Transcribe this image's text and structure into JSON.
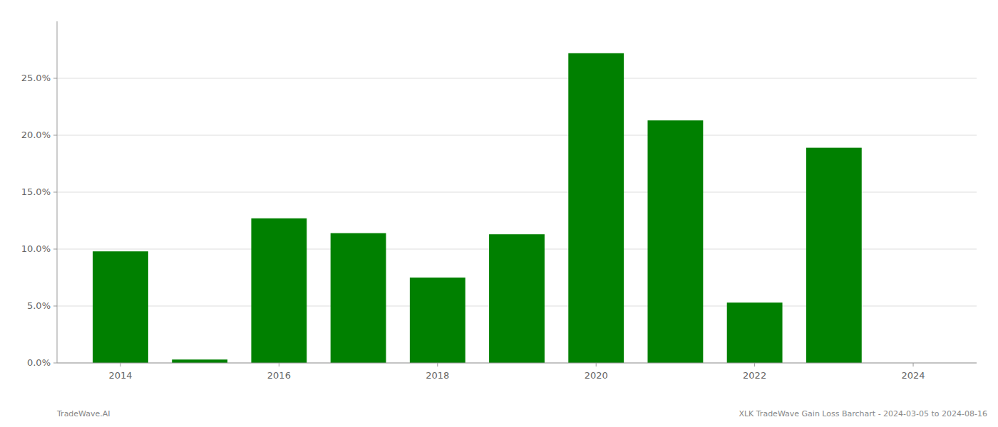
{
  "chart_data": {
    "type": "bar",
    "x": [
      2014,
      2015,
      2016,
      2017,
      2018,
      2019,
      2020,
      2021,
      2022,
      2023,
      2024
    ],
    "values": [
      0.098,
      0.003,
      0.127,
      0.114,
      0.075,
      0.113,
      0.272,
      0.213,
      0.053,
      0.189,
      0.0
    ],
    "color": "#008000",
    "xlim": [
      2013.2,
      2024.8
    ],
    "xticks": [
      2014,
      2016,
      2018,
      2020,
      2022,
      2024
    ],
    "ylim": [
      0,
      0.3
    ],
    "yticks": [
      {
        "value": 0.0,
        "label": "0.0%"
      },
      {
        "value": 0.05,
        "label": "5.0%"
      },
      {
        "value": 0.1,
        "label": "10.0%"
      },
      {
        "value": 0.15,
        "label": "15.0%"
      },
      {
        "value": 0.2,
        "label": "20.0%"
      },
      {
        "value": 0.25,
        "label": "25.0%"
      }
    ],
    "grid": true,
    "annotations": [
      "TradeWave.AI",
      "XLK TradeWave Gain Loss Barchart - 2024-03-05 to 2024-08-16"
    ]
  }
}
